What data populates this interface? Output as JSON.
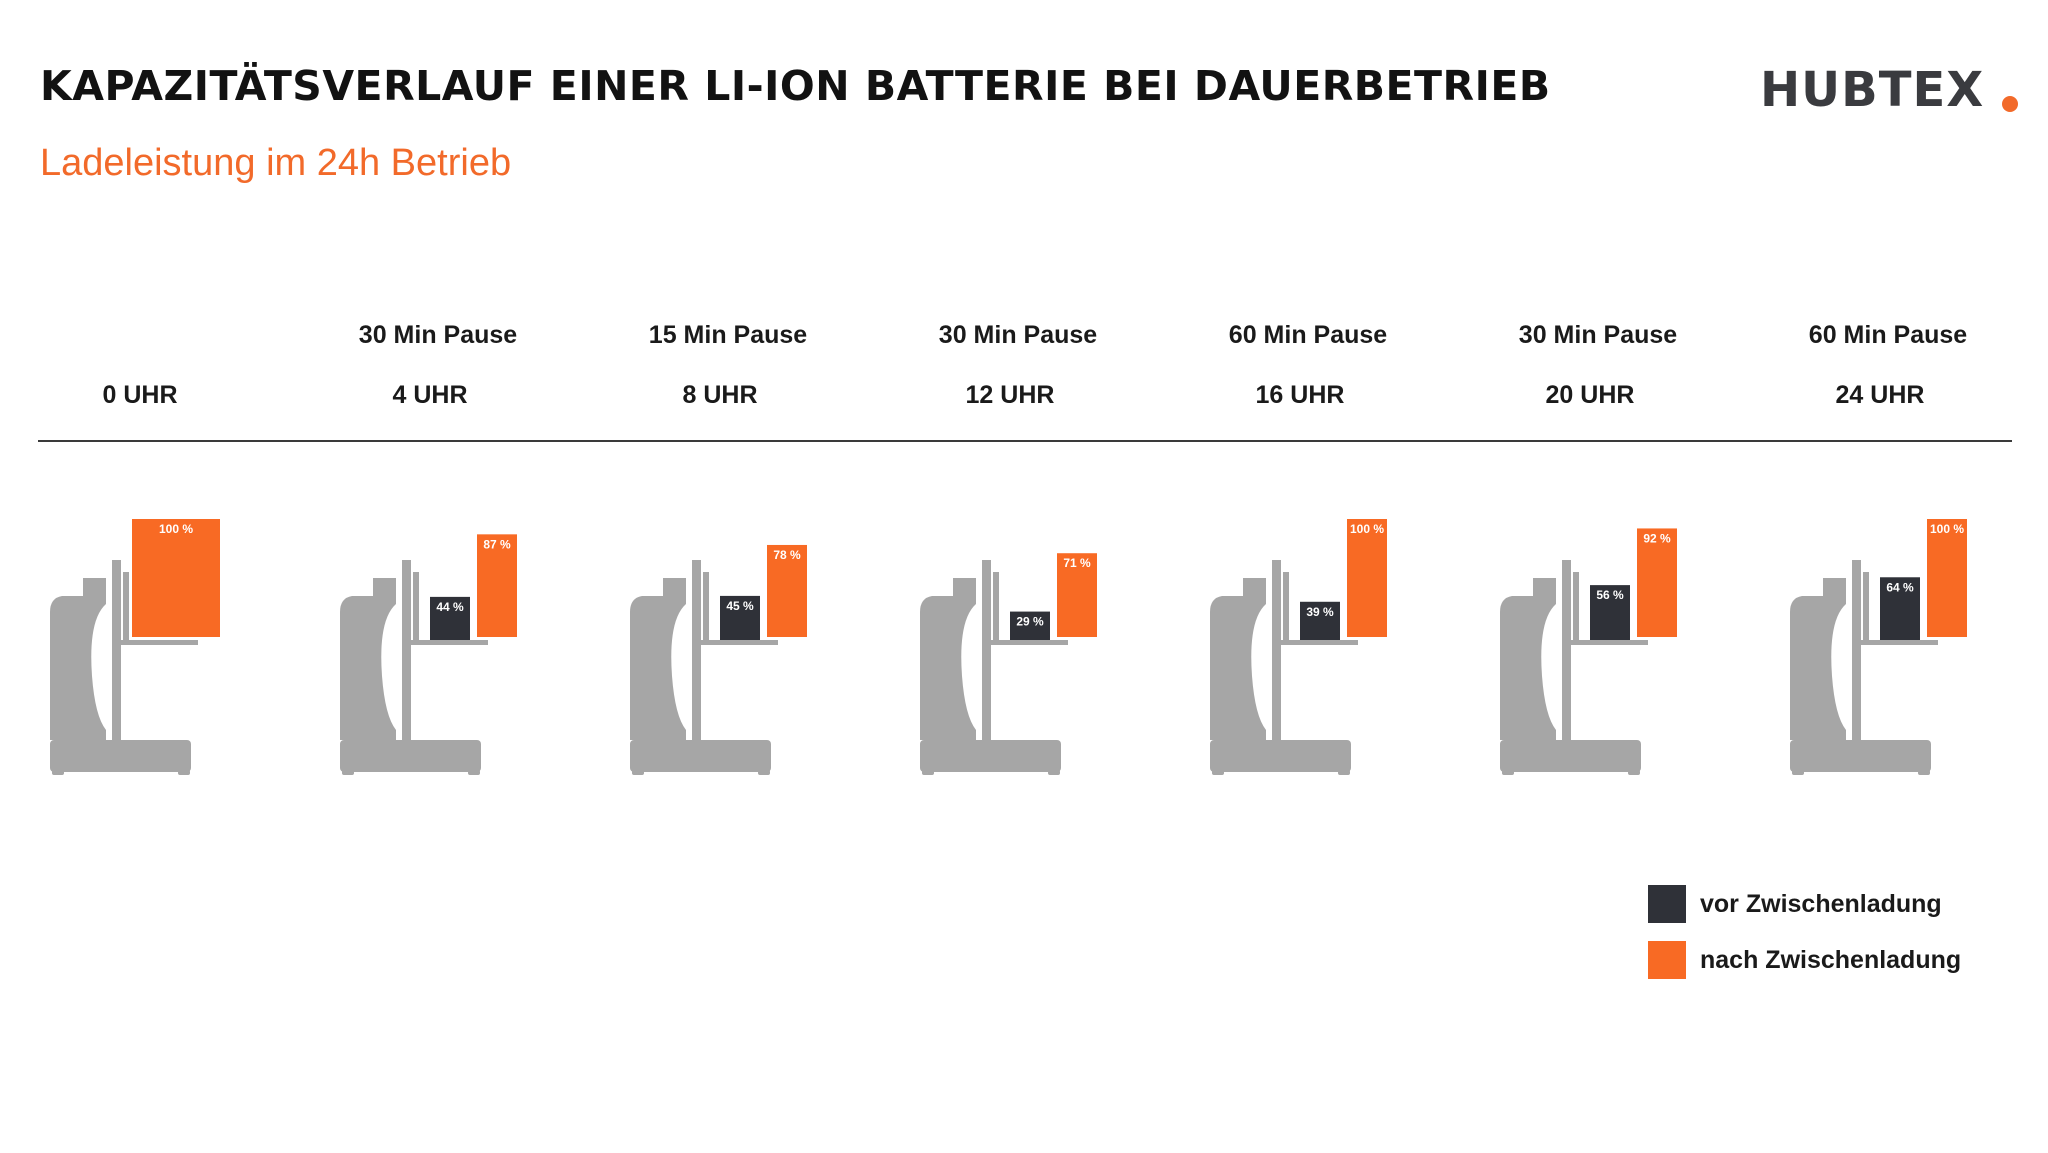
{
  "header": {
    "title": "KAPAZITÄTSVERLAUF EINER LI-ION BATTERIE BEI DAUERBETRIEB",
    "subtitle": "Ladeleistung im 24h Betrieb",
    "logo_text": "HUBTEX"
  },
  "colors": {
    "before": "#2f3138",
    "after": "#f86a24",
    "forklift": "#a6a6a6",
    "accent": "#f26a2a"
  },
  "chart_data": {
    "type": "bar",
    "categories": [
      "0 UHR",
      "4 UHR",
      "8 UHR",
      "12 UHR",
      "16 UHR",
      "20 UHR",
      "24 UHR"
    ],
    "pauses": [
      "",
      "30 Min Pause",
      "15 Min Pause",
      "30 Min Pause",
      "60 Min Pause",
      "30 Min Pause",
      "60 Min Pause"
    ],
    "series": [
      {
        "name": "vor Zwischenladung",
        "values": [
          null,
          44,
          45,
          29,
          39,
          56,
          64
        ]
      },
      {
        "name": "nach Zwischenladung",
        "values": [
          100,
          87,
          78,
          71,
          100,
          92,
          100
        ]
      }
    ],
    "value_labels": {
      "before": [
        "",
        "44 %",
        "45 %",
        "29 %",
        "39 %",
        "56 %",
        "64 %"
      ],
      "after": [
        "100 %",
        "87 %",
        "78 %",
        "71 %",
        "100 %",
        "92 %",
        "100 %"
      ]
    },
    "ylim": [
      0,
      100
    ],
    "legend_position": "bottom-right",
    "xlabel": "",
    "ylabel": ""
  }
}
